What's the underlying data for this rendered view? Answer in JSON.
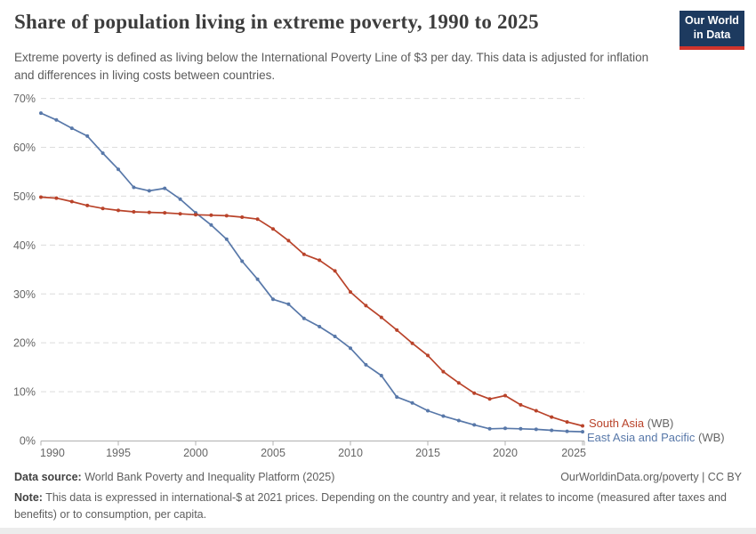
{
  "chart_data": {
    "type": "line",
    "title": "Share of population living in extreme poverty, 1990 to 2025",
    "subtitle": "Extreme poverty is defined as living below the International Poverty Line of $3 per day. This data is adjusted for inflation and differences in living costs between countries.",
    "xlabel": "",
    "ylabel": "",
    "grid": "horizontal-dashed",
    "legend_position": "end-of-line-labels-right",
    "ylim": [
      0,
      70
    ],
    "yticks": [
      0,
      10,
      20,
      30,
      40,
      50,
      60,
      70
    ],
    "ytick_suffix": "%",
    "xticks": [
      1990,
      1995,
      2000,
      2005,
      2010,
      2015,
      2020,
      2025
    ],
    "x": [
      1990,
      1991,
      1992,
      1993,
      1994,
      1995,
      1996,
      1997,
      1998,
      1999,
      2000,
      2001,
      2002,
      2003,
      2004,
      2005,
      2006,
      2007,
      2008,
      2009,
      2010,
      2011,
      2012,
      2013,
      2014,
      2015,
      2016,
      2017,
      2018,
      2019,
      2020,
      2021,
      2022,
      2023,
      2024,
      2025
    ],
    "series": [
      {
        "id": "east-asia-and-pacific",
        "name": "East Asia and Pacific",
        "suffix": "(WB)",
        "color": "#5878a9",
        "label": {
          "x": 660,
          "y": 496
        },
        "values": [
          67.0,
          65.6,
          63.9,
          62.3,
          58.8,
          55.5,
          51.8,
          51.1,
          51.6,
          49.4,
          46.6,
          44.1,
          41.2,
          36.7,
          33.0,
          28.9,
          27.9,
          25.0,
          23.3,
          21.3,
          18.9,
          15.5,
          13.3,
          8.9,
          7.7,
          6.1,
          5.0,
          4.1,
          3.2,
          2.4,
          2.5,
          2.4,
          2.3,
          2.1,
          1.9,
          1.8
        ]
      },
      {
        "id": "south-asia",
        "name": "South Asia",
        "suffix": "(WB)",
        "color": "#b9432a",
        "label": {
          "x": 662,
          "y": 480
        },
        "values": [
          49.8,
          49.6,
          48.9,
          48.1,
          47.5,
          47.1,
          46.8,
          46.7,
          46.6,
          46.4,
          46.2,
          46.1,
          46.0,
          45.7,
          45.3,
          43.3,
          40.9,
          38.1,
          36.9,
          34.7,
          30.4,
          27.6,
          25.2,
          22.6,
          19.9,
          17.4,
          14.1,
          11.8,
          9.7,
          8.5,
          9.2,
          7.3,
          6.1,
          4.8,
          3.8,
          3.0
        ]
      }
    ],
    "colors": {
      "gridline": "#dcdcdc",
      "axis": "#b0b0b0",
      "tick_label": "#666666",
      "suffix_gray": "#666666"
    }
  },
  "logo": {
    "line1": "Our World",
    "line2": "in Data",
    "bg": "#1d3a5f",
    "bar": "#d1342c"
  },
  "footer": {
    "source_label": "Data source:",
    "source_text": " World Bank Poverty and Inequality Platform (2025)",
    "link_text": "OurWorldinData.org/poverty | CC BY",
    "note_label": "Note:",
    "note_text": " This data is expressed in international-$ at 2021 prices. Depending on the country and year, it relates to income (measured after taxes and benefits) or to consumption, per capita."
  }
}
